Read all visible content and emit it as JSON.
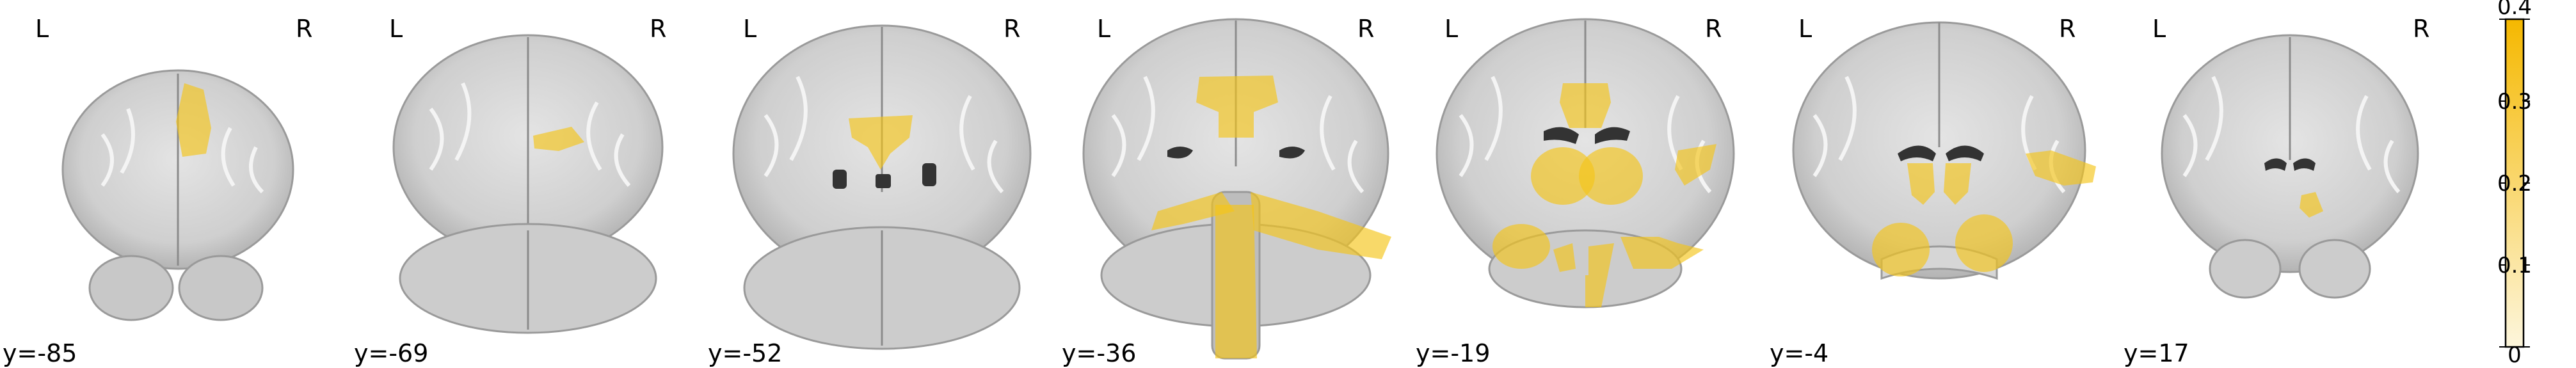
{
  "figure": {
    "view": "coronal",
    "orientation_left": "L",
    "orientation_right": "R",
    "background_color": "#ffffff",
    "overlay_color": "#f5c518",
    "slices": [
      {
        "label": "y=-85"
      },
      {
        "label": "y=-69"
      },
      {
        "label": "y=-52"
      },
      {
        "label": "y=-36"
      },
      {
        "label": "y=-19"
      },
      {
        "label": "y=-4"
      },
      {
        "label": "y=17"
      }
    ]
  },
  "colorbar": {
    "ticks": [
      "0.4",
      "0.3",
      "0.2",
      "0.1",
      "0"
    ],
    "min": 0,
    "max": 0.4,
    "color_low": "#fdf6dc",
    "color_high": "#f5b800"
  }
}
